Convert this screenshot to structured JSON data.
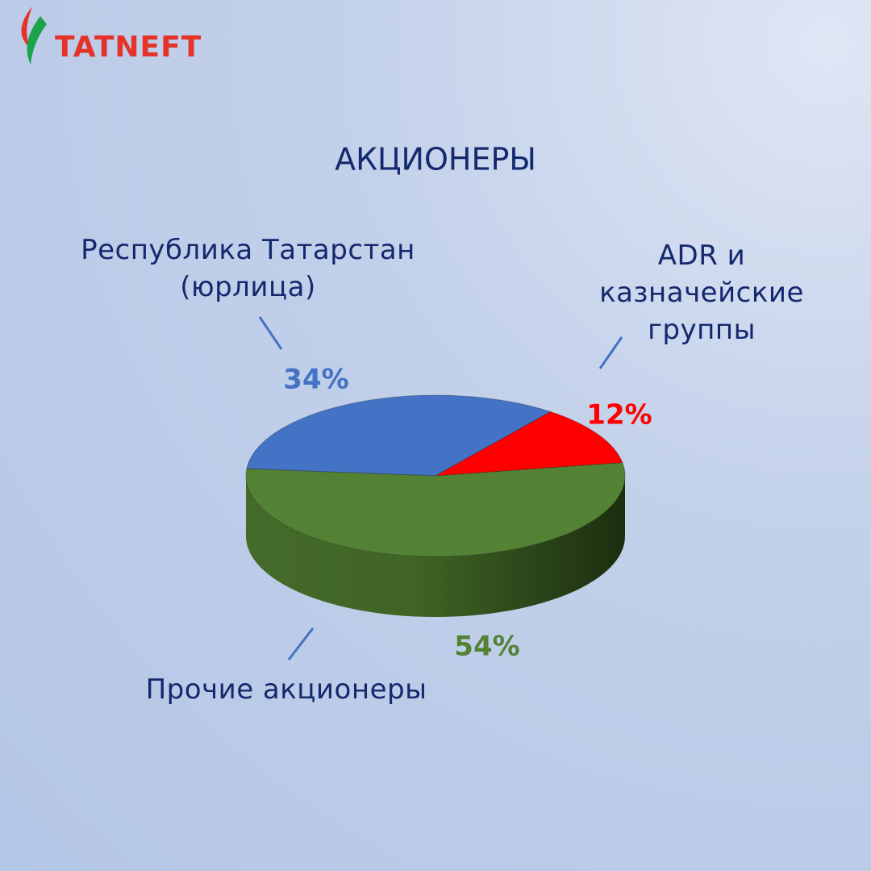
{
  "logo": "TATNEFT",
  "chart_data": {
    "type": "pie",
    "title": "АКЦИОНЕРЫ",
    "categories": [
      "Республика Татарстан\n(юрлица)",
      "ADR и\nказначейские\nгруппы",
      "Прочие акционеры"
    ],
    "values": [
      34,
      12,
      54
    ],
    "value_labels": [
      "34%",
      "12%",
      "54%"
    ],
    "colors": [
      "#4472c4",
      "#ff0000",
      "#548235"
    ]
  }
}
